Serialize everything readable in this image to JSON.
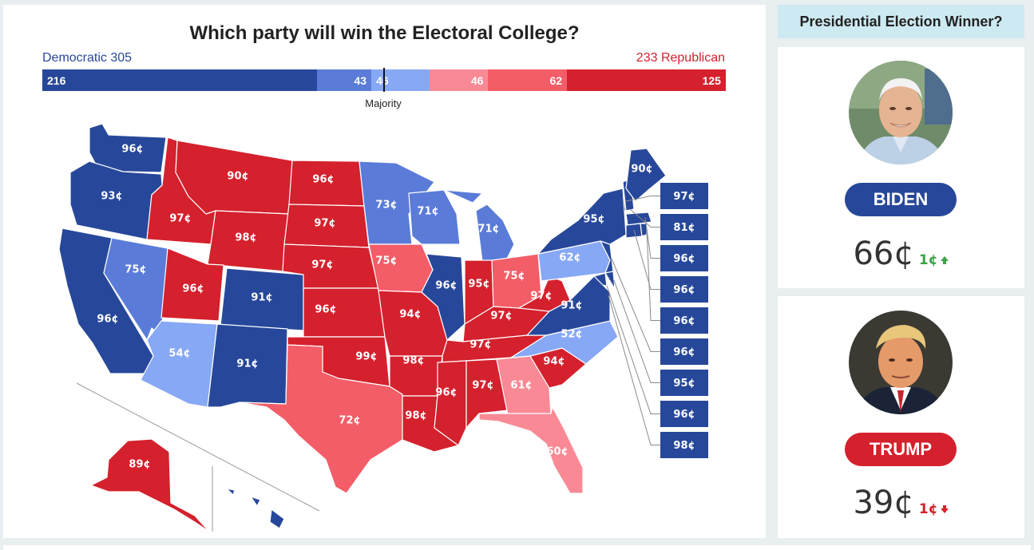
{
  "title": "Which party will win the Electoral College?",
  "summary": {
    "dem_label": "Democratic 305",
    "rep_label": "233 Republican",
    "majority_label": "Majority",
    "segments": [
      {
        "value": "216",
        "n": 216,
        "color": "#27489a",
        "align": "left"
      },
      {
        "value": "43",
        "n": 43,
        "color": "#5a7bd8",
        "align": "right"
      },
      {
        "value": "46",
        "n": 46,
        "color": "#87a8f5",
        "align": "left"
      },
      {
        "value": "46",
        "n": 46,
        "color": "#f98a95",
        "align": "right"
      },
      {
        "value": "62",
        "n": 62,
        "color": "#f35d67",
        "align": "right"
      },
      {
        "value": "125",
        "n": 125,
        "color": "#d4212d",
        "align": "right"
      }
    ]
  },
  "colors": {
    "solid_dem": "#27489a",
    "likely_dem": "#5a7bd8",
    "lean_dem": "#87a8f5",
    "lean_rep": "#f98a95",
    "likely_rep": "#f35d67",
    "solid_rep": "#d4212d"
  },
  "states": [
    {
      "id": "WA",
      "label": "96¢",
      "rating": "solid_dem"
    },
    {
      "id": "OR",
      "label": "93¢",
      "rating": "solid_dem"
    },
    {
      "id": "CA",
      "label": "96¢",
      "rating": "solid_dem"
    },
    {
      "id": "NV",
      "label": "75¢",
      "rating": "likely_dem"
    },
    {
      "id": "ID",
      "label": "97¢",
      "rating": "solid_rep"
    },
    {
      "id": "MT",
      "label": "90¢",
      "rating": "solid_rep"
    },
    {
      "id": "WY",
      "label": "98¢",
      "rating": "solid_rep"
    },
    {
      "id": "UT",
      "label": "96¢",
      "rating": "solid_rep"
    },
    {
      "id": "CO",
      "label": "91¢",
      "rating": "solid_dem"
    },
    {
      "id": "AZ",
      "label": "54¢",
      "rating": "lean_dem"
    },
    {
      "id": "NM",
      "label": "91¢",
      "rating": "solid_dem"
    },
    {
      "id": "ND",
      "label": "96¢",
      "rating": "solid_rep"
    },
    {
      "id": "SD",
      "label": "97¢",
      "rating": "solid_rep"
    },
    {
      "id": "NE",
      "label": "97¢",
      "rating": "solid_rep"
    },
    {
      "id": "KS",
      "label": "96¢",
      "rating": "solid_rep"
    },
    {
      "id": "OK",
      "label": "99¢",
      "rating": "solid_rep"
    },
    {
      "id": "TX",
      "label": "72¢",
      "rating": "likely_rep"
    },
    {
      "id": "MN",
      "label": "73¢",
      "rating": "likely_dem"
    },
    {
      "id": "IA",
      "label": "75¢",
      "rating": "likely_rep"
    },
    {
      "id": "MO",
      "label": "94¢",
      "rating": "solid_rep"
    },
    {
      "id": "AR",
      "label": "98¢",
      "rating": "solid_rep"
    },
    {
      "id": "LA",
      "label": "98¢",
      "rating": "solid_rep"
    },
    {
      "id": "WI",
      "label": "71¢",
      "rating": "likely_dem"
    },
    {
      "id": "IL",
      "label": "96¢",
      "rating": "solid_dem"
    },
    {
      "id": "MI",
      "label": "71¢",
      "rating": "likely_dem"
    },
    {
      "id": "IN",
      "label": "95¢",
      "rating": "solid_rep"
    },
    {
      "id": "OH",
      "label": "75¢",
      "rating": "likely_rep"
    },
    {
      "id": "KY",
      "label": "97¢",
      "rating": "solid_rep"
    },
    {
      "id": "TN",
      "label": "97¢",
      "rating": "solid_rep"
    },
    {
      "id": "MS",
      "label": "96¢",
      "rating": "solid_rep"
    },
    {
      "id": "AL",
      "label": "97¢",
      "rating": "solid_rep"
    },
    {
      "id": "GA",
      "label": "61¢",
      "rating": "lean_rep"
    },
    {
      "id": "FL",
      "label": "60¢",
      "rating": "lean_rep"
    },
    {
      "id": "SC",
      "label": "94¢",
      "rating": "solid_rep"
    },
    {
      "id": "NC",
      "label": "52¢",
      "rating": "lean_dem"
    },
    {
      "id": "VA",
      "label": "91¢",
      "rating": "solid_dem"
    },
    {
      "id": "WV",
      "label": "97¢",
      "rating": "solid_rep"
    },
    {
      "id": "PA",
      "label": "62¢",
      "rating": "lean_dem"
    },
    {
      "id": "NY",
      "label": "95¢",
      "rating": "solid_dem"
    },
    {
      "id": "ME",
      "label": "90¢",
      "rating": "solid_dem"
    },
    {
      "id": "AK",
      "label": "89¢",
      "rating": "solid_rep"
    },
    {
      "id": "HI",
      "label": "",
      "rating": "solid_dem"
    }
  ],
  "small_state_boxes": [
    {
      "label": "97¢",
      "rating": "solid_dem"
    },
    {
      "label": "81¢",
      "rating": "solid_dem"
    },
    {
      "label": "96¢",
      "rating": "solid_dem"
    },
    {
      "label": "96¢",
      "rating": "solid_dem"
    },
    {
      "label": "96¢",
      "rating": "solid_dem"
    },
    {
      "label": "96¢",
      "rating": "solid_dem"
    },
    {
      "label": "95¢",
      "rating": "solid_dem"
    },
    {
      "label": "96¢",
      "rating": "solid_dem"
    },
    {
      "label": "98¢",
      "rating": "solid_dem"
    }
  ],
  "sidebar": {
    "header": "Presidential Election Winner?",
    "candidates": [
      {
        "name": "BIDEN",
        "price": "66¢",
        "change": "1¢",
        "direction": "up",
        "icon": "arrow-up-icon"
      },
      {
        "name": "TRUMP",
        "price": "39¢",
        "change": "1¢",
        "direction": "down",
        "icon": "arrow-down-icon"
      }
    ]
  }
}
